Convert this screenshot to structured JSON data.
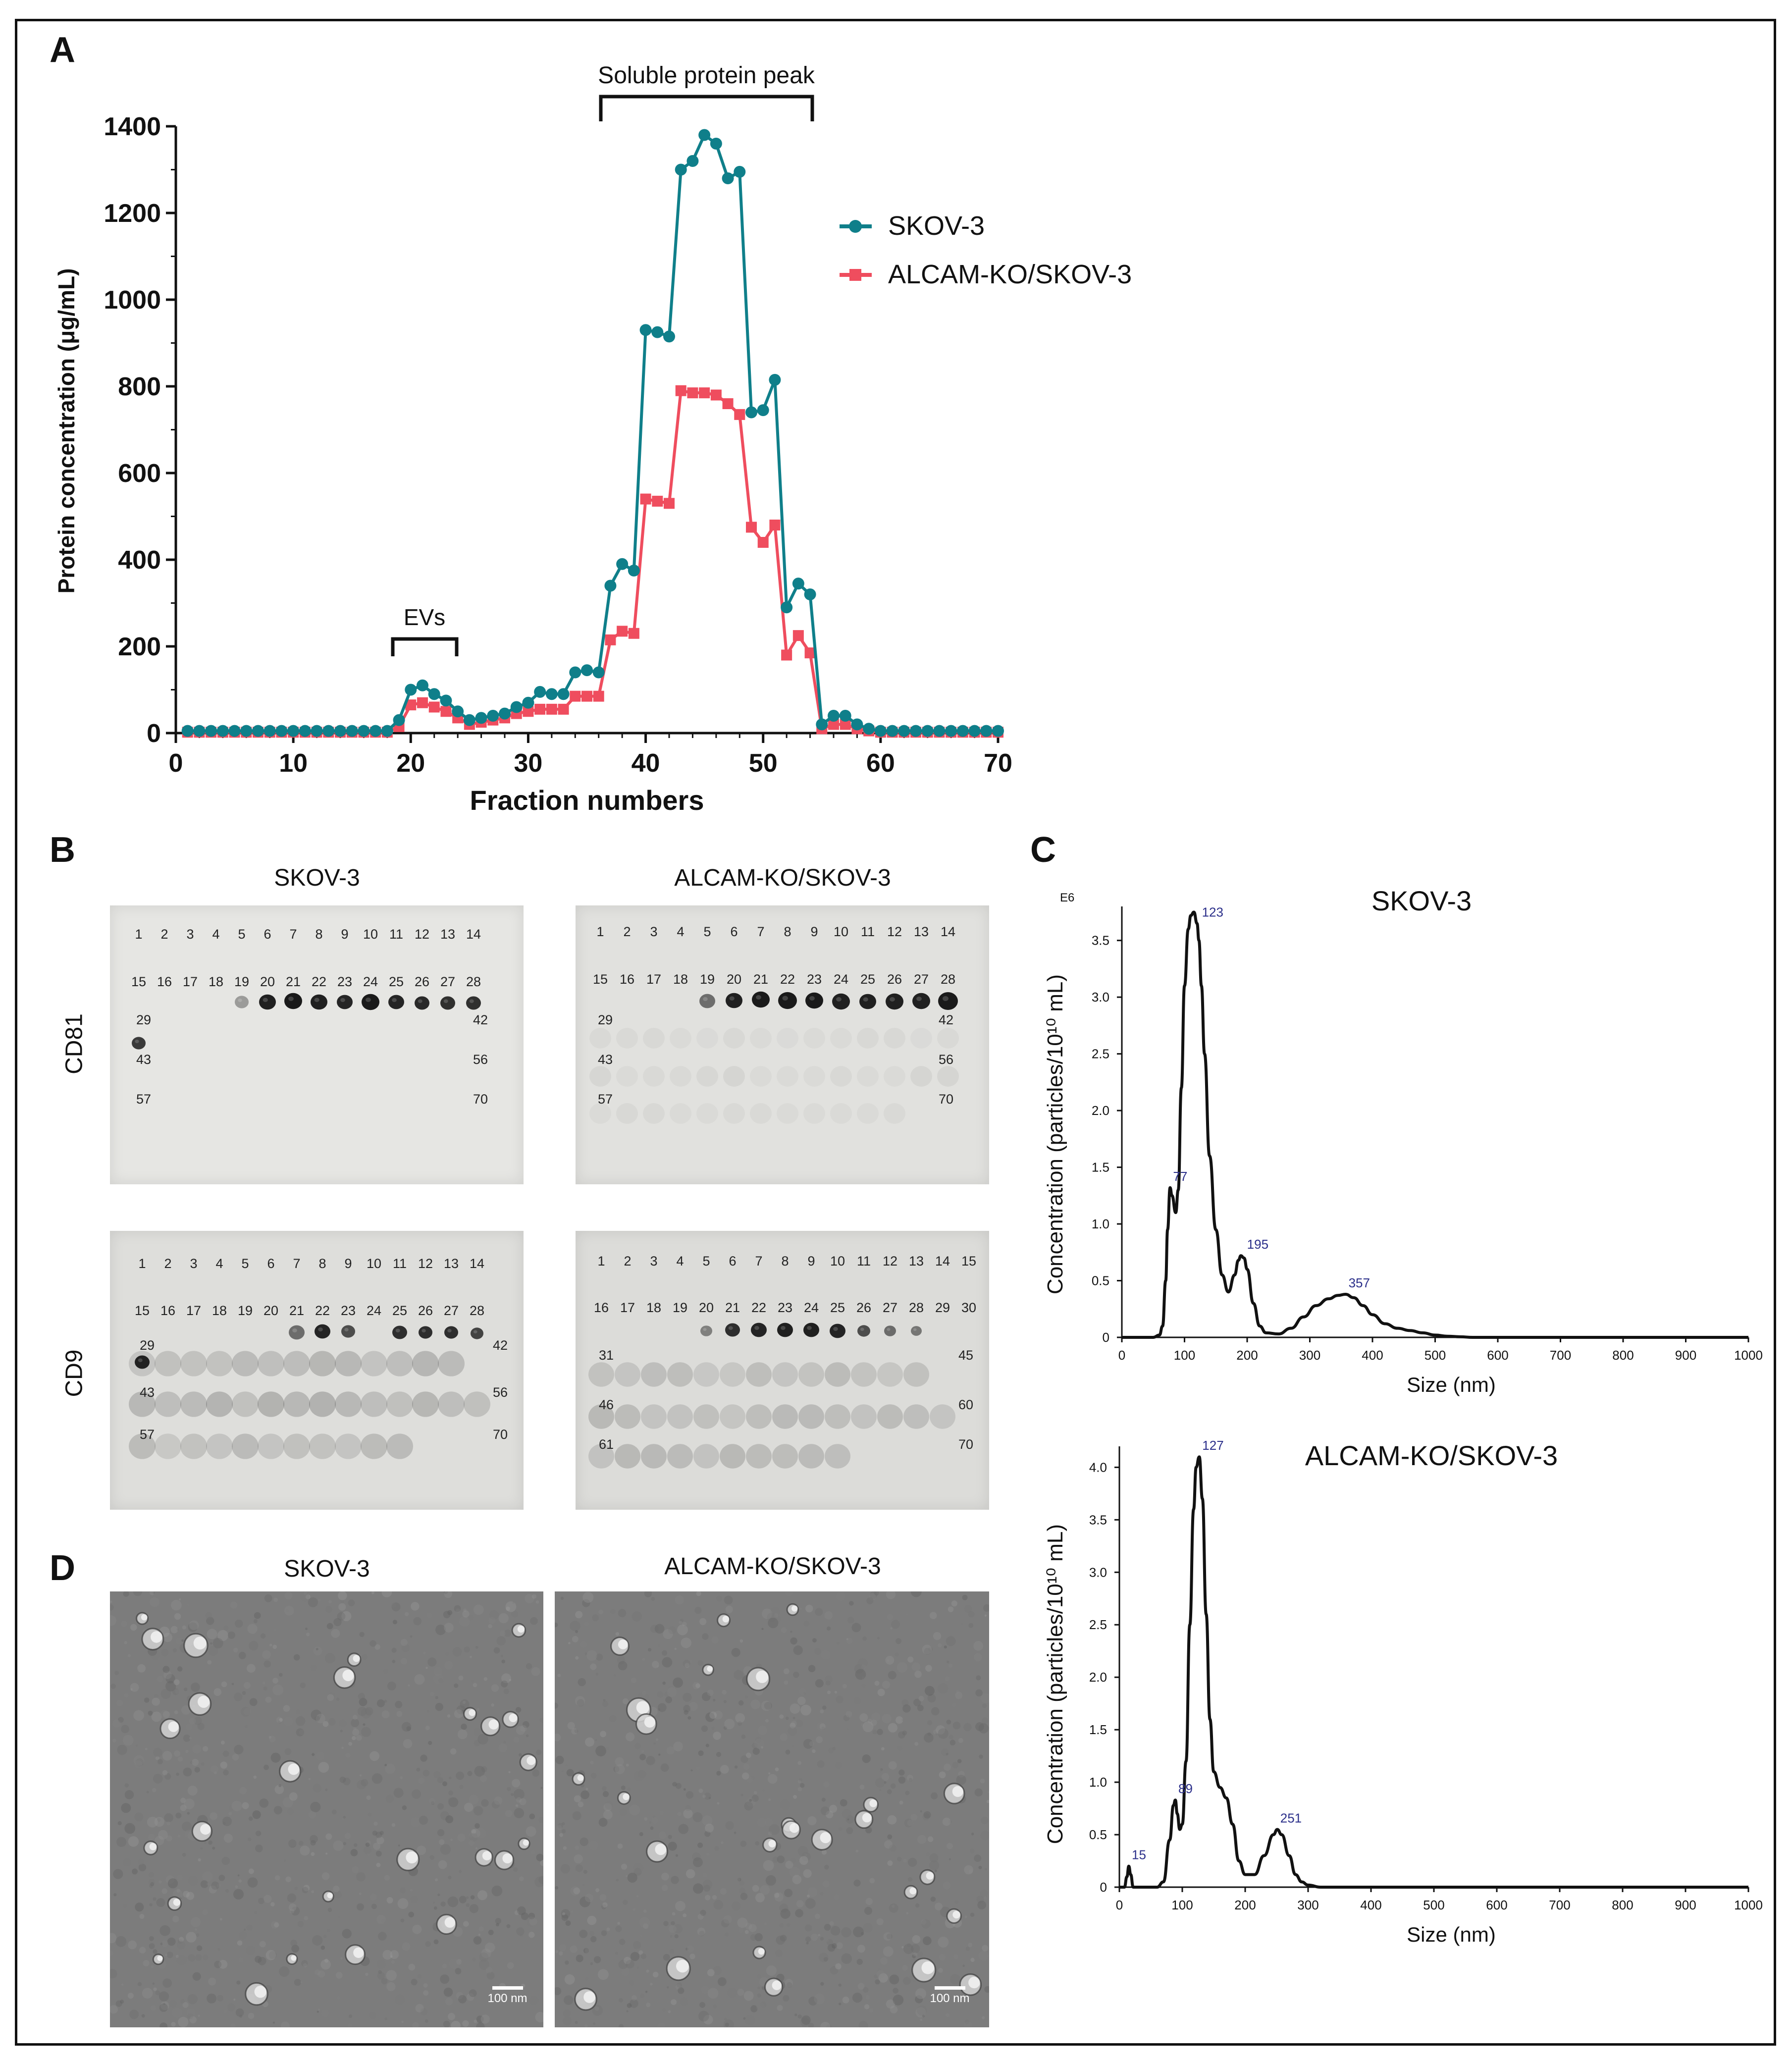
{
  "panels": {
    "a": "A",
    "b": "B",
    "c": "C",
    "d": "D"
  },
  "chart_data": [
    {
      "type": "line",
      "ylabel": "Protein concentration (μg/mL)",
      "xlabel": "Fraction numbers",
      "xlim": [
        0,
        70
      ],
      "ylim": [
        0,
        1400
      ],
      "xticks": [
        "0",
        "10",
        "20",
        "30",
        "40",
        "50",
        "60",
        "70"
      ],
      "yticks": [
        "0",
        "200",
        "400",
        "600",
        "800",
        "1000",
        "1200",
        "1400"
      ],
      "legend_position": "top-right",
      "annotations": [
        "Soluble protein peak",
        "EVs"
      ],
      "x": [
        1,
        2,
        3,
        4,
        5,
        6,
        7,
        8,
        9,
        10,
        11,
        12,
        13,
        14,
        15,
        16,
        17,
        18,
        19,
        20,
        21,
        22,
        23,
        24,
        25,
        26,
        27,
        28,
        29,
        30,
        31,
        32,
        33,
        34,
        35,
        36,
        37,
        38,
        39,
        40,
        41,
        42,
        43,
        44,
        45,
        46,
        47,
        48,
        49,
        50,
        51,
        52,
        53,
        54,
        55,
        56,
        57,
        58,
        59,
        60,
        61,
        62,
        63,
        64,
        65,
        66,
        67,
        68,
        69,
        70
      ],
      "series": [
        {
          "name": "SKOV-3",
          "color": "#0f7f8a",
          "marker": "circle",
          "values": [
            5,
            5,
            5,
            5,
            5,
            5,
            5,
            5,
            5,
            5,
            5,
            5,
            5,
            5,
            5,
            5,
            5,
            5,
            30,
            100,
            110,
            90,
            75,
            50,
            30,
            35,
            40,
            45,
            60,
            70,
            95,
            90,
            90,
            140,
            145,
            140,
            340,
            390,
            375,
            930,
            925,
            915,
            1300,
            1320,
            1380,
            1360,
            1280,
            1295,
            740,
            745,
            815,
            290,
            345,
            320,
            20,
            40,
            40,
            20,
            10,
            5,
            5,
            5,
            5,
            5,
            5,
            5,
            5,
            5,
            5,
            5
          ]
        },
        {
          "name": "ALCAM-KO/SKOV-3",
          "color": "#ef4d5e",
          "marker": "square",
          "values": [
            2,
            2,
            2,
            2,
            2,
            2,
            2,
            2,
            2,
            2,
            2,
            2,
            2,
            2,
            2,
            2,
            2,
            2,
            15,
            65,
            70,
            60,
            50,
            35,
            20,
            25,
            30,
            35,
            45,
            50,
            55,
            55,
            55,
            85,
            85,
            85,
            215,
            235,
            230,
            540,
            535,
            530,
            790,
            785,
            785,
            780,
            760,
            735,
            475,
            440,
            480,
            180,
            225,
            185,
            10,
            20,
            20,
            10,
            5,
            2,
            2,
            2,
            2,
            2,
            2,
            2,
            2,
            2,
            2,
            2
          ]
        }
      ]
    },
    {
      "type": "line",
      "title": "SKOV-3",
      "ylabel": "Concentration (particles/10¹⁰ mL)",
      "xlabel": "Size (nm)",
      "y_multiplier": "E6",
      "xlim": [
        0,
        1000
      ],
      "ylim": [
        0,
        3.8
      ],
      "xticks": [
        "0",
        "100",
        "200",
        "300",
        "400",
        "500",
        "600",
        "700",
        "800",
        "900",
        "1000"
      ],
      "yticks": [
        "0",
        "0.5",
        "1.0",
        "1.5",
        "2.0",
        "2.5",
        "3.0",
        "3.5"
      ],
      "peak_labels": [
        "77",
        "123",
        "195",
        "357"
      ],
      "x": [
        0,
        50,
        60,
        65,
        70,
        73,
        77,
        80,
        86,
        90,
        95,
        100,
        106,
        110,
        115,
        120,
        123,
        127,
        132,
        140,
        150,
        160,
        170,
        180,
        186,
        190,
        195,
        200,
        210,
        220,
        230,
        250,
        270,
        290,
        310,
        330,
        345,
        357,
        370,
        385,
        400,
        420,
        440,
        460,
        480,
        500,
        520,
        540,
        560,
        600,
        700,
        800,
        900,
        1000
      ],
      "values": [
        0,
        0,
        0.02,
        0.1,
        0.5,
        0.95,
        1.32,
        1.25,
        1.1,
        1.3,
        2.2,
        3.1,
        3.6,
        3.72,
        3.75,
        3.65,
        3.5,
        3.1,
        2.5,
        1.6,
        0.95,
        0.55,
        0.4,
        0.55,
        0.68,
        0.72,
        0.7,
        0.6,
        0.3,
        0.1,
        0.04,
        0.03,
        0.08,
        0.18,
        0.28,
        0.34,
        0.37,
        0.38,
        0.35,
        0.28,
        0.2,
        0.12,
        0.08,
        0.06,
        0.04,
        0.02,
        0.01,
        0.005,
        0,
        0,
        0,
        0,
        0,
        0
      ]
    },
    {
      "type": "line",
      "title": "ALCAM-KO/SKOV-3",
      "ylabel": "Concentration (particles/10¹⁰ mL)",
      "xlabel": "Size (nm)",
      "xlim": [
        0,
        1000
      ],
      "ylim": [
        0,
        4.2
      ],
      "xticks": [
        "0",
        "100",
        "200",
        "300",
        "400",
        "500",
        "600",
        "700",
        "800",
        "900",
        "1000"
      ],
      "yticks": [
        "0",
        "0.5",
        "1.0",
        "1.5",
        "2.0",
        "2.5",
        "3.0",
        "3.5",
        "4.0"
      ],
      "peak_labels": [
        "15",
        "89",
        "127",
        "251"
      ],
      "x": [
        0,
        8,
        12,
        15,
        18,
        22,
        30,
        60,
        70,
        80,
        86,
        89,
        92,
        96,
        100,
        106,
        112,
        118,
        122,
        127,
        132,
        138,
        144,
        150,
        160,
        170,
        180,
        190,
        200,
        215,
        230,
        245,
        251,
        258,
        270,
        280,
        290,
        300,
        320,
        400,
        500,
        600,
        700,
        800,
        900,
        1000
      ],
      "values": [
        0,
        0,
        0.1,
        0.2,
        0.12,
        0,
        0,
        0,
        0.05,
        0.45,
        0.78,
        0.83,
        0.7,
        0.55,
        0.6,
        1.2,
        2.5,
        3.6,
        4.0,
        4.1,
        3.7,
        2.6,
        1.6,
        1.1,
        0.95,
        0.85,
        0.6,
        0.25,
        0.12,
        0.12,
        0.3,
        0.5,
        0.55,
        0.5,
        0.3,
        0.12,
        0.05,
        0.02,
        0,
        0,
        0,
        0,
        0,
        0,
        0,
        0
      ]
    }
  ],
  "dot_blots": {
    "titles": [
      "SKOV-3",
      "ALCAM-KO/SKOV-3"
    ],
    "row_labels": [
      "CD81",
      "CD9"
    ],
    "cd81_skov3": {
      "row1": [
        "1",
        "2",
        "3",
        "4",
        "5",
        "6",
        "7",
        "8",
        "9",
        "10",
        "11",
        "12",
        "13",
        "14"
      ],
      "row2": [
        "15",
        "16",
        "17",
        "18",
        "19",
        "20",
        "21",
        "22",
        "23",
        "24",
        "25",
        "26",
        "27",
        "28"
      ],
      "side": [
        "29",
        "42",
        "43",
        "56",
        "57",
        "70"
      ]
    },
    "cd81_ko": {
      "row1": [
        "1",
        "2",
        "3",
        "4",
        "5",
        "6",
        "7",
        "8",
        "9",
        "10",
        "11",
        "12",
        "13",
        "14"
      ],
      "row2": [
        "15",
        "16",
        "17",
        "18",
        "19",
        "20",
        "21",
        "22",
        "23",
        "24",
        "25",
        "26",
        "27",
        "28"
      ],
      "side": [
        "29",
        "42",
        "43",
        "56",
        "57",
        "70"
      ]
    },
    "cd9_skov3": {
      "row1": [
        "1",
        "2",
        "3",
        "4",
        "5",
        "6",
        "7",
        "8",
        "9",
        "10",
        "11",
        "12",
        "13",
        "14"
      ],
      "row2": [
        "15",
        "16",
        "17",
        "18",
        "19",
        "20",
        "21",
        "22",
        "23",
        "24",
        "25",
        "26",
        "27",
        "28"
      ],
      "side": [
        "29",
        "42",
        "43",
        "56",
        "57",
        "70"
      ]
    },
    "cd9_ko": {
      "row1": [
        "1",
        "2",
        "3",
        "4",
        "5",
        "6",
        "7",
        "8",
        "9",
        "10",
        "11",
        "12",
        "13",
        "14",
        "15"
      ],
      "row2": [
        "16",
        "17",
        "18",
        "19",
        "20",
        "21",
        "22",
        "23",
        "24",
        "25",
        "26",
        "27",
        "28",
        "29",
        "30"
      ],
      "side": [
        "31",
        "45",
        "46",
        "60",
        "61",
        "70"
      ]
    }
  },
  "tem": {
    "titles": [
      "SKOV-3",
      "ALCAM-KO/SKOV-3"
    ],
    "scale_label": "100 nm"
  }
}
